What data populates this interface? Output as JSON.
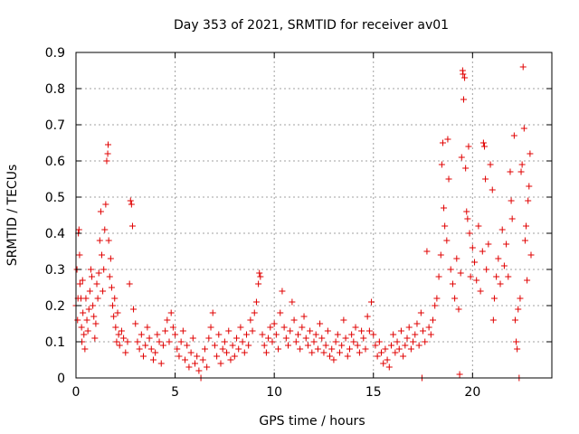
{
  "chart_data": {
    "type": "scatter",
    "title": "Day 353 of 2021, SRMTID for receiver av01",
    "xlabel": "GPS time / hours",
    "ylabel": "SRMTID / TECUs",
    "xlim": [
      0,
      24
    ],
    "ylim": [
      0,
      0.9
    ],
    "x_ticks": [
      0,
      5,
      10,
      15,
      20
    ],
    "x_tick_labels": [
      "0",
      "5",
      "10",
      "15",
      "20"
    ],
    "y_ticks": [
      0,
      0.1,
      0.2,
      0.3,
      0.4,
      0.5,
      0.6,
      0.7,
      0.8,
      0.9
    ],
    "y_tick_labels": [
      "0",
      "0.1",
      "0.2",
      "0.3",
      "0.4",
      "0.5",
      "0.6",
      "0.7",
      "0.8",
      "0.9"
    ],
    "grid": true,
    "marker": "+",
    "color": "#e00000",
    "series": [
      {
        "name": "av01",
        "points": [
          [
            0.0,
            0.2
          ],
          [
            0.05,
            0.3
          ],
          [
            0.08,
            0.16
          ],
          [
            0.1,
            0.22
          ],
          [
            0.12,
            0.4
          ],
          [
            0.15,
            0.41
          ],
          [
            0.18,
            0.34
          ],
          [
            0.2,
            0.26
          ],
          [
            0.25,
            0.22
          ],
          [
            0.28,
            0.14
          ],
          [
            0.3,
            0.1
          ],
          [
            0.33,
            0.27
          ],
          [
            0.35,
            0.18
          ],
          [
            0.4,
            0.12
          ],
          [
            0.45,
            0.08
          ],
          [
            0.5,
            0.22
          ],
          [
            0.55,
            0.16
          ],
          [
            0.6,
            0.13
          ],
          [
            0.65,
            0.19
          ],
          [
            0.7,
            0.24
          ],
          [
            0.75,
            0.3
          ],
          [
            0.8,
            0.28
          ],
          [
            0.85,
            0.2
          ],
          [
            0.9,
            0.17
          ],
          [
            0.95,
            0.11
          ],
          [
            1.0,
            0.15
          ],
          [
            1.05,
            0.26
          ],
          [
            1.1,
            0.22
          ],
          [
            1.15,
            0.29
          ],
          [
            1.2,
            0.38
          ],
          [
            1.25,
            0.46
          ],
          [
            1.3,
            0.34
          ],
          [
            1.35,
            0.24
          ],
          [
            1.4,
            0.3
          ],
          [
            1.45,
            0.41
          ],
          [
            1.5,
            0.48
          ],
          [
            1.55,
            0.6
          ],
          [
            1.6,
            0.62
          ],
          [
            1.62,
            0.645
          ],
          [
            1.65,
            0.38
          ],
          [
            1.7,
            0.28
          ],
          [
            1.75,
            0.33
          ],
          [
            1.8,
            0.25
          ],
          [
            1.85,
            0.2
          ],
          [
            1.9,
            0.17
          ],
          [
            1.95,
            0.22
          ],
          [
            2.0,
            0.14
          ],
          [
            2.05,
            0.1
          ],
          [
            2.1,
            0.18
          ],
          [
            2.15,
            0.12
          ],
          [
            2.2,
            0.09
          ],
          [
            2.3,
            0.13
          ],
          [
            2.4,
            0.11
          ],
          [
            2.5,
            0.07
          ],
          [
            2.6,
            0.1
          ],
          [
            2.7,
            0.26
          ],
          [
            2.75,
            0.49
          ],
          [
            2.8,
            0.48
          ],
          [
            2.85,
            0.42
          ],
          [
            2.9,
            0.19
          ],
          [
            3.0,
            0.15
          ],
          [
            3.1,
            0.1
          ],
          [
            3.2,
            0.08
          ],
          [
            3.3,
            0.12
          ],
          [
            3.4,
            0.06
          ],
          [
            3.5,
            0.09
          ],
          [
            3.6,
            0.14
          ],
          [
            3.7,
            0.11
          ],
          [
            3.8,
            0.08
          ],
          [
            3.9,
            0.05
          ],
          [
            4.0,
            0.07
          ],
          [
            4.1,
            0.12
          ],
          [
            4.2,
            0.1
          ],
          [
            4.3,
            0.04
          ],
          [
            4.4,
            0.09
          ],
          [
            4.5,
            0.13
          ],
          [
            4.6,
            0.16
          ],
          [
            4.7,
            0.1
          ],
          [
            4.8,
            0.18
          ],
          [
            4.9,
            0.14
          ],
          [
            5.0,
            0.12
          ],
          [
            5.1,
            0.08
          ],
          [
            5.2,
            0.06
          ],
          [
            5.3,
            0.1
          ],
          [
            5.4,
            0.13
          ],
          [
            5.5,
            0.05
          ],
          [
            5.6,
            0.09
          ],
          [
            5.7,
            0.03
          ],
          [
            5.8,
            0.07
          ],
          [
            5.9,
            0.11
          ],
          [
            6.0,
            0.04
          ],
          [
            6.1,
            0.06
          ],
          [
            6.2,
            0.02
          ],
          [
            6.3,
            0.0
          ],
          [
            6.4,
            0.05
          ],
          [
            6.5,
            0.08
          ],
          [
            6.6,
            0.03
          ],
          [
            6.7,
            0.11
          ],
          [
            6.8,
            0.14
          ],
          [
            6.9,
            0.18
          ],
          [
            7.0,
            0.09
          ],
          [
            7.1,
            0.06
          ],
          [
            7.2,
            0.12
          ],
          [
            7.3,
            0.04
          ],
          [
            7.4,
            0.08
          ],
          [
            7.5,
            0.1
          ],
          [
            7.6,
            0.07
          ],
          [
            7.7,
            0.13
          ],
          [
            7.8,
            0.05
          ],
          [
            7.9,
            0.09
          ],
          [
            8.0,
            0.06
          ],
          [
            8.1,
            0.11
          ],
          [
            8.2,
            0.08
          ],
          [
            8.3,
            0.14
          ],
          [
            8.4,
            0.1
          ],
          [
            8.5,
            0.07
          ],
          [
            8.6,
            0.12
          ],
          [
            8.7,
            0.09
          ],
          [
            8.8,
            0.16
          ],
          [
            8.9,
            0.13
          ],
          [
            9.0,
            0.18
          ],
          [
            9.1,
            0.21
          ],
          [
            9.2,
            0.26
          ],
          [
            9.25,
            0.29
          ],
          [
            9.3,
            0.28
          ],
          [
            9.4,
            0.12
          ],
          [
            9.5,
            0.09
          ],
          [
            9.6,
            0.07
          ],
          [
            9.7,
            0.11
          ],
          [
            9.8,
            0.14
          ],
          [
            9.9,
            0.1
          ],
          [
            10.0,
            0.15
          ],
          [
            10.1,
            0.12
          ],
          [
            10.2,
            0.08
          ],
          [
            10.3,
            0.18
          ],
          [
            10.4,
            0.24
          ],
          [
            10.5,
            0.14
          ],
          [
            10.6,
            0.11
          ],
          [
            10.7,
            0.09
          ],
          [
            10.8,
            0.13
          ],
          [
            10.9,
            0.21
          ],
          [
            11.0,
            0.16
          ],
          [
            11.1,
            0.1
          ],
          [
            11.2,
            0.12
          ],
          [
            11.3,
            0.08
          ],
          [
            11.4,
            0.14
          ],
          [
            11.5,
            0.17
          ],
          [
            11.6,
            0.11
          ],
          [
            11.7,
            0.09
          ],
          [
            11.8,
            0.13
          ],
          [
            11.9,
            0.07
          ],
          [
            12.0,
            0.1
          ],
          [
            12.1,
            0.12
          ],
          [
            12.2,
            0.08
          ],
          [
            12.3,
            0.15
          ],
          [
            12.4,
            0.11
          ],
          [
            12.5,
            0.07
          ],
          [
            12.6,
            0.09
          ],
          [
            12.7,
            0.13
          ],
          [
            12.8,
            0.06
          ],
          [
            12.9,
            0.08
          ],
          [
            13.0,
            0.05
          ],
          [
            13.1,
            0.1
          ],
          [
            13.2,
            0.12
          ],
          [
            13.3,
            0.07
          ],
          [
            13.4,
            0.09
          ],
          [
            13.5,
            0.16
          ],
          [
            13.6,
            0.11
          ],
          [
            13.7,
            0.06
          ],
          [
            13.8,
            0.08
          ],
          [
            13.9,
            0.12
          ],
          [
            14.0,
            0.1
          ],
          [
            14.1,
            0.14
          ],
          [
            14.2,
            0.09
          ],
          [
            14.3,
            0.07
          ],
          [
            14.4,
            0.13
          ],
          [
            14.5,
            0.11
          ],
          [
            14.6,
            0.08
          ],
          [
            14.7,
            0.17
          ],
          [
            14.8,
            0.13
          ],
          [
            14.9,
            0.21
          ],
          [
            15.0,
            0.12
          ],
          [
            15.1,
            0.09
          ],
          [
            15.2,
            0.06
          ],
          [
            15.3,
            0.1
          ],
          [
            15.4,
            0.07
          ],
          [
            15.5,
            0.04
          ],
          [
            15.6,
            0.08
          ],
          [
            15.7,
            0.05
          ],
          [
            15.8,
            0.03
          ],
          [
            15.9,
            0.09
          ],
          [
            16.0,
            0.12
          ],
          [
            16.1,
            0.07
          ],
          [
            16.2,
            0.1
          ],
          [
            16.3,
            0.08
          ],
          [
            16.4,
            0.13
          ],
          [
            16.5,
            0.06
          ],
          [
            16.6,
            0.09
          ],
          [
            16.7,
            0.11
          ],
          [
            16.8,
            0.14
          ],
          [
            16.9,
            0.08
          ],
          [
            17.0,
            0.1
          ],
          [
            17.1,
            0.12
          ],
          [
            17.2,
            0.15
          ],
          [
            17.3,
            0.09
          ],
          [
            17.4,
            0.18
          ],
          [
            17.45,
            0.0
          ],
          [
            17.5,
            0.13
          ],
          [
            17.6,
            0.1
          ],
          [
            17.7,
            0.35
          ],
          [
            17.8,
            0.14
          ],
          [
            17.9,
            0.12
          ],
          [
            18.0,
            0.16
          ],
          [
            18.1,
            0.2
          ],
          [
            18.2,
            0.22
          ],
          [
            18.3,
            0.28
          ],
          [
            18.4,
            0.34
          ],
          [
            18.45,
            0.59
          ],
          [
            18.5,
            0.65
          ],
          [
            18.55,
            0.47
          ],
          [
            18.6,
            0.42
          ],
          [
            18.7,
            0.38
          ],
          [
            18.75,
            0.66
          ],
          [
            18.8,
            0.55
          ],
          [
            18.9,
            0.3
          ],
          [
            19.0,
            0.26
          ],
          [
            19.1,
            0.22
          ],
          [
            19.2,
            0.33
          ],
          [
            19.3,
            0.19
          ],
          [
            19.35,
            0.01
          ],
          [
            19.4,
            0.29
          ],
          [
            19.45,
            0.61
          ],
          [
            19.5,
            0.85
          ],
          [
            19.52,
            0.84
          ],
          [
            19.55,
            0.77
          ],
          [
            19.6,
            0.83
          ],
          [
            19.65,
            0.58
          ],
          [
            19.7,
            0.46
          ],
          [
            19.75,
            0.44
          ],
          [
            19.8,
            0.64
          ],
          [
            19.85,
            0.4
          ],
          [
            19.9,
            0.28
          ],
          [
            20.0,
            0.36
          ],
          [
            20.1,
            0.32
          ],
          [
            20.2,
            0.27
          ],
          [
            20.3,
            0.42
          ],
          [
            20.4,
            0.24
          ],
          [
            20.5,
            0.35
          ],
          [
            20.55,
            0.65
          ],
          [
            20.6,
            0.64
          ],
          [
            20.65,
            0.55
          ],
          [
            20.7,
            0.3
          ],
          [
            20.8,
            0.37
          ],
          [
            20.9,
            0.59
          ],
          [
            21.0,
            0.52
          ],
          [
            21.05,
            0.16
          ],
          [
            21.1,
            0.22
          ],
          [
            21.2,
            0.28
          ],
          [
            21.3,
            0.33
          ],
          [
            21.4,
            0.26
          ],
          [
            21.5,
            0.41
          ],
          [
            21.6,
            0.31
          ],
          [
            21.7,
            0.37
          ],
          [
            21.8,
            0.28
          ],
          [
            21.9,
            0.57
          ],
          [
            21.95,
            0.49
          ],
          [
            22.0,
            0.44
          ],
          [
            22.1,
            0.67
          ],
          [
            22.15,
            0.16
          ],
          [
            22.2,
            0.1
          ],
          [
            22.25,
            0.08
          ],
          [
            22.3,
            0.19
          ],
          [
            22.35,
            0.0
          ],
          [
            22.4,
            0.22
          ],
          [
            22.45,
            0.57
          ],
          [
            22.5,
            0.59
          ],
          [
            22.55,
            0.86
          ],
          [
            22.6,
            0.69
          ],
          [
            22.65,
            0.38
          ],
          [
            22.7,
            0.42
          ],
          [
            22.75,
            0.27
          ],
          [
            22.8,
            0.49
          ],
          [
            22.85,
            0.53
          ],
          [
            22.9,
            0.62
          ],
          [
            22.95,
            0.34
          ]
        ]
      }
    ]
  }
}
